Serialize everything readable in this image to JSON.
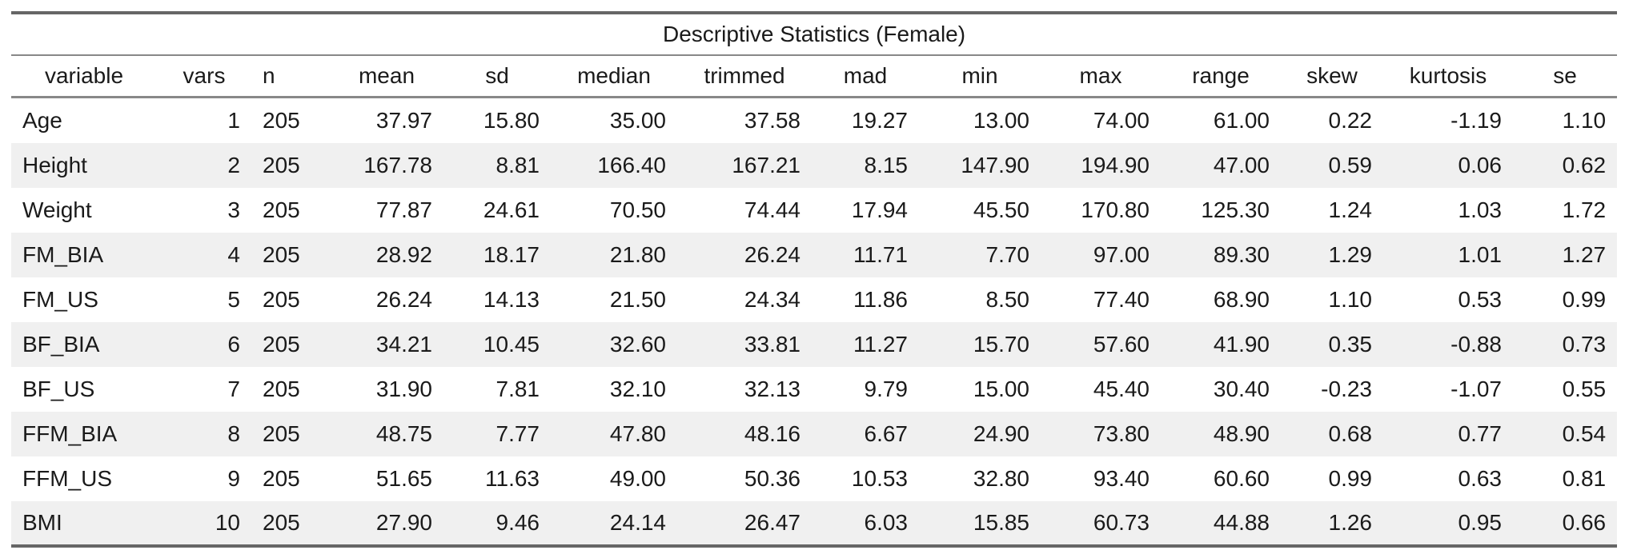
{
  "table": {
    "title": "Descriptive Statistics (Female)",
    "columns": [
      "variable",
      "vars",
      "n",
      "mean",
      "sd",
      "median",
      "trimmed",
      "mad",
      "min",
      "max",
      "range",
      "skew",
      "kurtosis",
      "se"
    ],
    "rows": [
      [
        "Age",
        "1",
        "205",
        "37.97",
        "15.80",
        "35.00",
        "37.58",
        "19.27",
        "13.00",
        "74.00",
        "61.00",
        "0.22",
        "-1.19",
        "1.10"
      ],
      [
        "Height",
        "2",
        "205",
        "167.78",
        "8.81",
        "166.40",
        "167.21",
        "8.15",
        "147.90",
        "194.90",
        "47.00",
        "0.59",
        "0.06",
        "0.62"
      ],
      [
        "Weight",
        "3",
        "205",
        "77.87",
        "24.61",
        "70.50",
        "74.44",
        "17.94",
        "45.50",
        "170.80",
        "125.30",
        "1.24",
        "1.03",
        "1.72"
      ],
      [
        "FM_BIA",
        "4",
        "205",
        "28.92",
        "18.17",
        "21.80",
        "26.24",
        "11.71",
        "7.70",
        "97.00",
        "89.30",
        "1.29",
        "1.01",
        "1.27"
      ],
      [
        "FM_US",
        "5",
        "205",
        "26.24",
        "14.13",
        "21.50",
        "24.34",
        "11.86",
        "8.50",
        "77.40",
        "68.90",
        "1.10",
        "0.53",
        "0.99"
      ],
      [
        "BF_BIA",
        "6",
        "205",
        "34.21",
        "10.45",
        "32.60",
        "33.81",
        "11.27",
        "15.70",
        "57.60",
        "41.90",
        "0.35",
        "-0.88",
        "0.73"
      ],
      [
        "BF_US",
        "7",
        "205",
        "31.90",
        "7.81",
        "32.10",
        "32.13",
        "9.79",
        "15.00",
        "45.40",
        "30.40",
        "-0.23",
        "-1.07",
        "0.55"
      ],
      [
        "FFM_BIA",
        "8",
        "205",
        "48.75",
        "7.77",
        "47.80",
        "48.16",
        "6.67",
        "24.90",
        "73.80",
        "48.90",
        "0.68",
        "0.77",
        "0.54"
      ],
      [
        "FFM_US",
        "9",
        "205",
        "51.65",
        "11.63",
        "49.00",
        "50.36",
        "10.53",
        "32.80",
        "93.40",
        "60.60",
        "0.99",
        "0.63",
        "0.81"
      ],
      [
        "BMI",
        "10",
        "205",
        "27.90",
        "9.46",
        "24.14",
        "26.47",
        "6.03",
        "15.85",
        "60.73",
        "44.88",
        "1.26",
        "0.95",
        "0.66"
      ]
    ]
  }
}
